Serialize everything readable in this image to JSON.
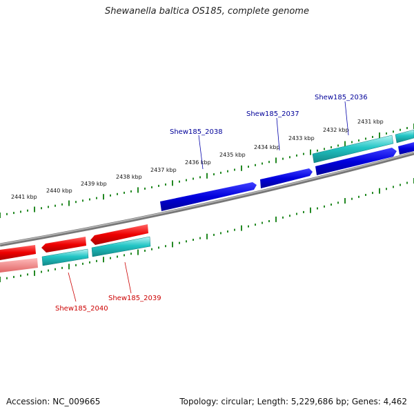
{
  "title": "Shewanella baltica OS185, complete genome",
  "footer": {
    "accession": "Accession: NC_009665",
    "summary": "Topology: circular; Length: 5,229,686 bp; Genes: 4,462"
  },
  "colors": {
    "forward_gene": "#0000dd",
    "reverse_gene": "#ee0000",
    "cds_track": "#22c5c5",
    "backbone": "#888888",
    "ticks": "#228822",
    "forward_label": "#000099",
    "reverse_label": "#cc0000"
  },
  "scale": {
    "unit": "kbp",
    "tick_labels": [
      "2431 kbp",
      "2432 kbp",
      "2433 kbp",
      "2434 kbp",
      "2435 kbp",
      "2436 kbp",
      "2437 kbp",
      "2438 kbp",
      "2439 kbp",
      "2440 kbp",
      "2441 kbp"
    ]
  },
  "genes": [
    {
      "name": "Shew185_2036",
      "strand": "forward"
    },
    {
      "name": "Shew185_2037",
      "strand": "forward"
    },
    {
      "name": "Shew185_2038",
      "strand": "forward"
    },
    {
      "name": "Shew185_2039",
      "strand": "reverse"
    },
    {
      "name": "Shew185_2040",
      "strand": "reverse"
    }
  ]
}
